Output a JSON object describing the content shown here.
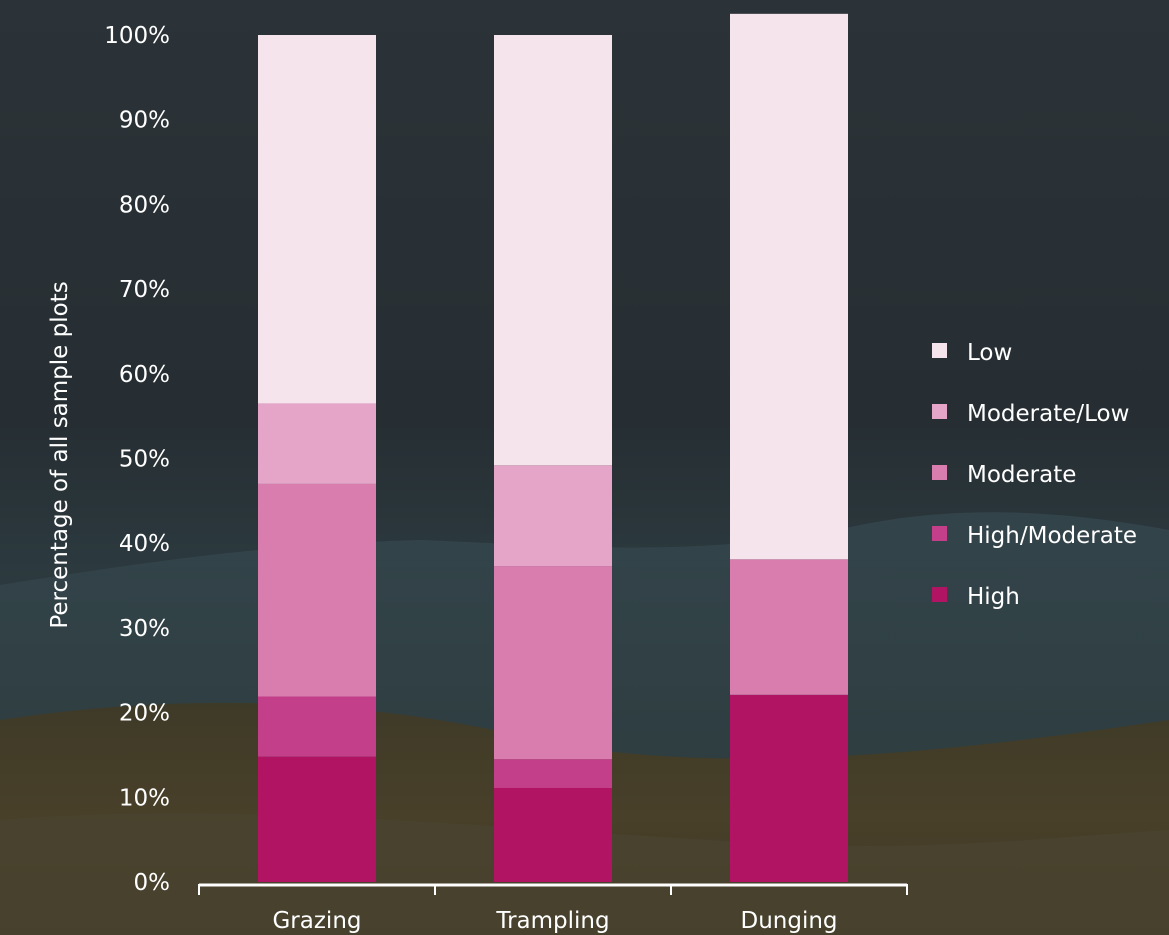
{
  "chart_data": {
    "type": "bar",
    "stacked": true,
    "title": "",
    "xlabel": "",
    "ylabel": "Percentage of all sample plots",
    "ylim": [
      0,
      100
    ],
    "y_ticks": [
      "0%",
      "10%",
      "20%",
      "30%",
      "40%",
      "50%",
      "60%",
      "70%",
      "80%",
      "90%",
      "100%"
    ],
    "categories": [
      "Grazing",
      "Trampling",
      "Dunging"
    ],
    "series": [
      {
        "name": "High",
        "color": "#b01463",
        "values": [
          14.8,
          11.1,
          22.1
        ]
      },
      {
        "name": "High/Moderate",
        "color": "#c33f8a",
        "values": [
          7.1,
          3.4,
          0
        ]
      },
      {
        "name": "Moderate",
        "color": "#d87dae",
        "values": [
          25.1,
          22.8,
          16.0
        ]
      },
      {
        "name": "Moderate/Low",
        "color": "#e5a5c8",
        "values": [
          9.5,
          11.9,
          0
        ]
      },
      {
        "name": "Low",
        "color": "#f6e4ed",
        "values": [
          43.5,
          50.8,
          64.4
        ]
      }
    ],
    "legend": {
      "position": "right",
      "order": [
        "Low",
        "Moderate/Low",
        "Moderate",
        "High/Moderate",
        "High"
      ]
    },
    "grid": false
  }
}
